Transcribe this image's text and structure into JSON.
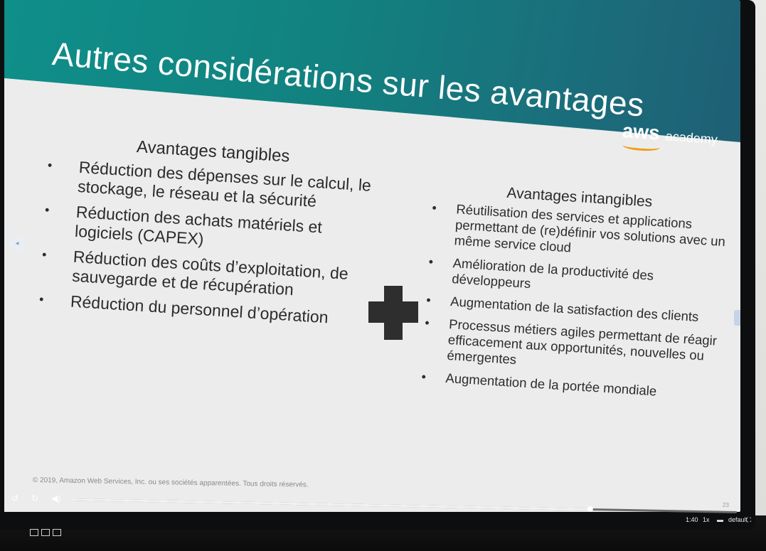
{
  "slide": {
    "title": "Autres considérations sur les avantages",
    "logo": {
      "word": "aws",
      "sub": "academy"
    },
    "tangible": {
      "heading": "Avantages tangibles",
      "items": [
        "Réduction des dépenses sur le calcul, le stockage, le réseau et la sécurité",
        "Réduction des achats matériels et logiciels (CAPEX)",
        "Réduction des coûts d’exploitation, de sauvegarde et de récupération",
        "Réduction du personnel d’opération"
      ]
    },
    "intangible": {
      "heading": "Avantages intangibles",
      "items": [
        "Réutilisation des services et applications permettant de (re)définir vos solutions avec un même service cloud",
        "Amélioration de la productivité des développeurs",
        "Augmentation de la satisfaction des clients",
        "Processus métiers agiles permettant de réagir efficacement aux opportunités, nouvelles ou émergentes",
        "Augmentation de la portée mondiale"
      ]
    },
    "copyright": "© 2019, Amazon Web Services, Inc. ou ses sociétés apparentées. Tous droits réservés.",
    "page_number": "23"
  },
  "player": {
    "progress": 0.78,
    "time": "1:40",
    "speed": "1x",
    "quality": "default"
  },
  "colors": {
    "header_teal": "#12817f",
    "header_blue": "#1f5f75",
    "aws_orange": "#f39c12",
    "slide_bg": "#ececec"
  },
  "icons": [
    "rewind-icon",
    "forward-icon",
    "volume-icon",
    "plus-sign-icon",
    "fullscreen-icon",
    "screen-icon"
  ]
}
